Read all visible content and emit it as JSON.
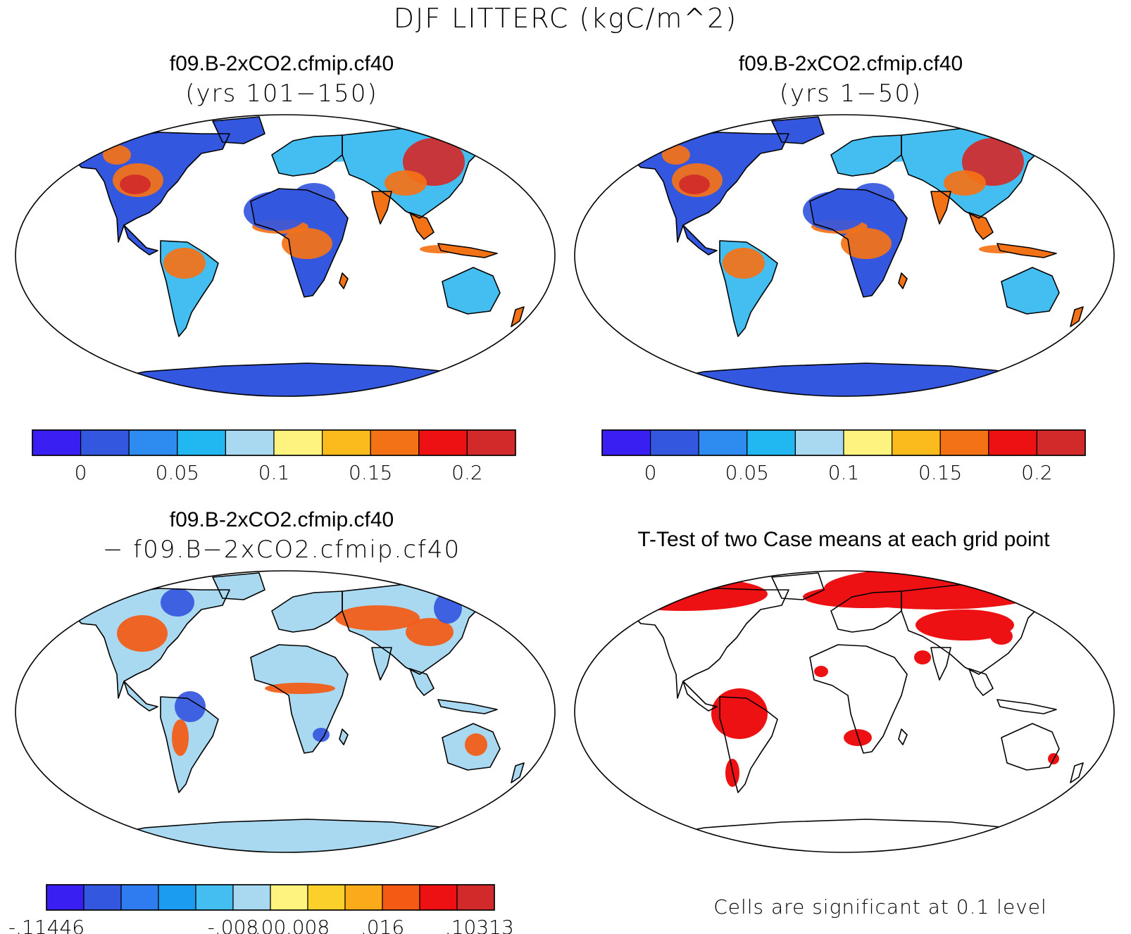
{
  "main_title": "DJF LITTERC (kgC/m^2)",
  "panels": {
    "top_left": {
      "title": "f09.B-2xCO2.cfmip.cf40",
      "subtitle": "(yrs 101−150)"
    },
    "top_right": {
      "title": "f09.B-2xCO2.cfmip.cf40",
      "subtitle": "(yrs 1−50)"
    },
    "bottom_left": {
      "title": "f09.B-2xCO2.cfmip.cf40",
      "subtitle": "− f09.B−2xCO2.cfmip.cf40"
    },
    "bottom_right": {
      "title": "T-Test of two Case means at each grid point",
      "note": "Cells are significant at 0.1 level"
    }
  },
  "colorbars": {
    "absolute": {
      "colors": [
        "#3a1ff2",
        "#3457e0",
        "#2e8bef",
        "#21b8f1",
        "#a8d9f0",
        "#fff37f",
        "#fbbb1c",
        "#f47216",
        "#ee1114",
        "#d22a2a"
      ],
      "tick_labels": [
        "0",
        "0.05",
        "0.1",
        "0.15",
        "0.2"
      ]
    },
    "difference": {
      "colors": [
        "#3a1ff2",
        "#3457e0",
        "#2e7cef",
        "#1c9cf0",
        "#44bdf0",
        "#a8d9f0",
        "#fff37f",
        "#fcd02a",
        "#fbaa1a",
        "#f45a14",
        "#ee1114",
        "#d22a2a"
      ],
      "tick_labels": [
        "-.11446",
        "-.008",
        ".00",
        ".008",
        ".016",
        ".10313"
      ]
    }
  },
  "map_colors": {
    "ocean": "#ffffff",
    "land_low": "#3457e0",
    "land_mid": "#44bdf0",
    "land_high": "#f47216",
    "land_peak": "#d22a2a",
    "diff_base": "#a8d9f0",
    "diff_pos": "#f45a14",
    "diff_neg": "#3457e0",
    "significant": "#ee1114"
  }
}
